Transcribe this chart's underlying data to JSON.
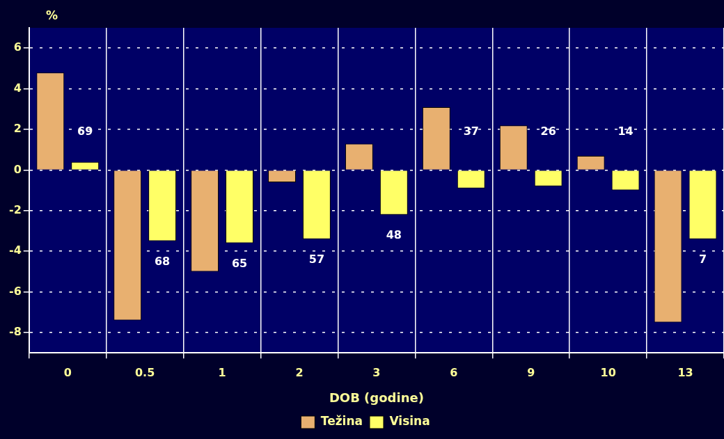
{
  "chart_data": {
    "type": "bar",
    "xlabel": "DOB (godine)",
    "ylabel": "%",
    "categories": [
      "0",
      "0.5",
      "1",
      "2",
      "3",
      "6",
      "9",
      "10",
      "13"
    ],
    "series": [
      {
        "name": "Težina",
        "color": "#e8b070",
        "values": [
          4.8,
          -7.4,
          -5.0,
          -0.6,
          1.3,
          3.1,
          2.2,
          0.7,
          -7.5
        ]
      },
      {
        "name": "Visina",
        "color": "#ffff66",
        "values": [
          0.4,
          -3.5,
          -3.6,
          -3.4,
          -2.2,
          -0.9,
          -0.8,
          -1.0,
          -3.4
        ]
      }
    ],
    "ylim": [
      -9,
      7
    ],
    "yticks": [
      -8,
      -6,
      -4,
      -2,
      0,
      2,
      4,
      6
    ],
    "grid": true,
    "legend": "bottom",
    "annotations": [
      "69",
      "68",
      "65",
      "57",
      "48",
      "37",
      "26",
      "14",
      "7"
    ]
  }
}
